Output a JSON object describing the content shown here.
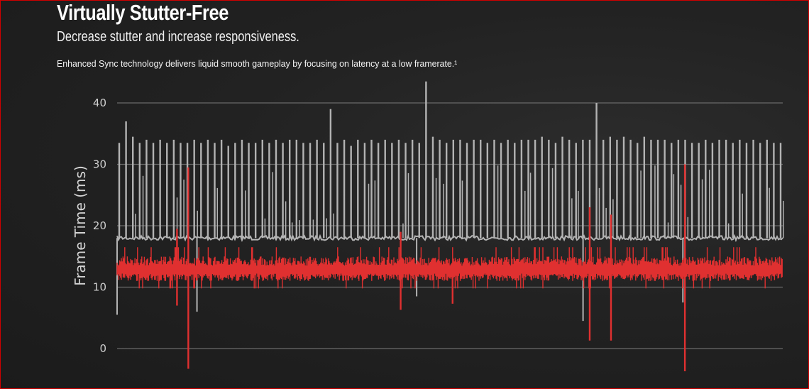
{
  "header": {
    "title": "Virtually Stutter-Free",
    "subtitle": "Decrease stutter and increase responsiveness.",
    "description": "Enhanced Sync technology delivers liquid smooth gameplay by focusing on latency at a low framerate.¹"
  },
  "chart_data": {
    "type": "line",
    "title": "",
    "ylabel": "Frame Time (ms)",
    "xlabel": "",
    "ylim": [
      0,
      40
    ],
    "yticks": [
      "0",
      "10",
      "20",
      "30",
      "40"
    ],
    "grid": "horizontal",
    "legend": "none",
    "series": [
      {
        "color": "#b3b3b3",
        "baseline": 18,
        "spike_peaks": [
          33.5,
          37,
          34.5,
          33.5,
          34,
          33.5,
          34,
          33.5,
          34,
          33.5,
          33.5,
          34,
          33.5,
          34,
          33.5,
          34,
          33,
          33.5,
          34,
          33.5,
          33.5,
          34,
          33.5,
          34,
          33.5,
          34,
          34,
          33.5,
          33.5,
          34,
          33.5,
          39,
          33.5,
          34,
          33,
          34,
          33.5,
          34,
          33.5,
          34,
          33.5,
          34,
          33.5,
          34,
          33.5,
          43.5,
          34.5,
          34,
          33.5,
          34,
          34,
          33.5,
          34,
          34,
          33.5,
          34,
          33.5,
          34,
          33.5,
          34,
          34,
          34,
          34.5,
          34,
          33.5,
          34.5,
          34,
          33.5,
          34,
          34,
          40,
          34,
          34.5,
          34,
          34.5,
          34,
          33.5,
          34.5,
          34,
          34,
          34,
          33.5,
          34,
          34,
          33.5,
          33.5,
          34,
          33.5,
          34,
          34,
          33.5,
          34,
          33.5,
          34,
          33.5,
          34,
          33.5,
          33.5
        ],
        "dips": [
          {
            "x": 0,
            "value": 5.5
          },
          {
            "x": 12,
            "value": 6
          },
          {
            "x": 45,
            "value": 8.5
          },
          {
            "x": 70,
            "value": 4.5
          },
          {
            "x": 85,
            "value": 7.5
          }
        ]
      },
      {
        "color": "#e03030",
        "band": [
          11,
          15
        ],
        "spikes": [
          {
            "x": 9,
            "low": 7,
            "high": 19.5
          },
          {
            "x": 10.7,
            "low": -3.3,
            "high": 29.5
          },
          {
            "x": 42.6,
            "low": 6.3,
            "high": 19
          },
          {
            "x": 50.4,
            "low": 7.3,
            "high": 13
          },
          {
            "x": 71,
            "low": 1.3,
            "high": 23
          },
          {
            "x": 74.2,
            "low": 1.3,
            "high": 21.8
          },
          {
            "x": 85.3,
            "low": -3.7,
            "high": 30
          }
        ]
      }
    ]
  },
  "colors": {
    "background": "#1f1f1f",
    "frame": "#d00000",
    "grid": "#6a6a6a"
  }
}
